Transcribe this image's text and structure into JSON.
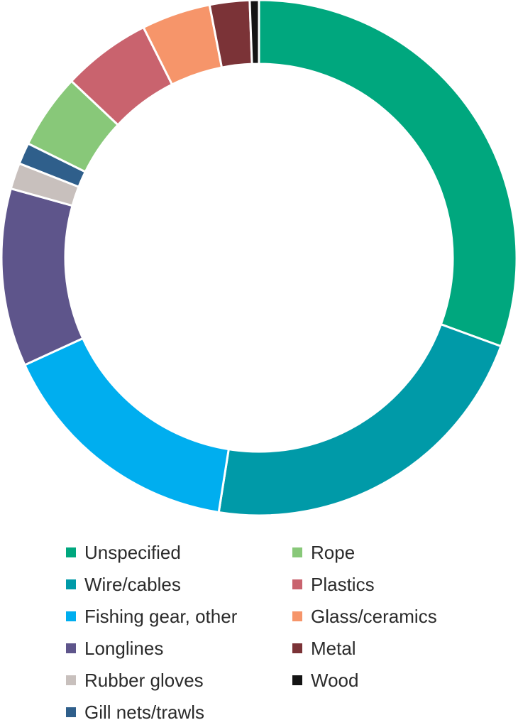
{
  "chart_data": {
    "type": "pie",
    "variant": "donut",
    "title": "",
    "legend_position": "bottom",
    "slices": [
      {
        "label": "Unspecified",
        "value": 31.8,
        "color": "#00a77e"
      },
      {
        "label": "Wire/cables",
        "value": 22.8,
        "color": "#009aa8"
      },
      {
        "label": "Fishing gear, other",
        "value": 16.3,
        "color": "#00aeef"
      },
      {
        "label": "Longlines",
        "value": 11.6,
        "color": "#5e558b"
      },
      {
        "label": "Rubber gloves",
        "value": 1.7,
        "color": "#c8c0bd"
      },
      {
        "label": "Gill nets/trawls",
        "value": 1.4,
        "color": "#2f5f8b"
      },
      {
        "label": "Rope",
        "value": 4.9,
        "color": "#88c879"
      },
      {
        "label": "Plastics",
        "value": 5.8,
        "color": "#c9636e"
      },
      {
        "label": "Glass/ceramics",
        "value": 4.5,
        "color": "#f6956a"
      },
      {
        "label": "Metal",
        "value": 2.6,
        "color": "#7b3337"
      },
      {
        "label": "Wood",
        "value": 0.6,
        "color": "#141414"
      }
    ]
  }
}
